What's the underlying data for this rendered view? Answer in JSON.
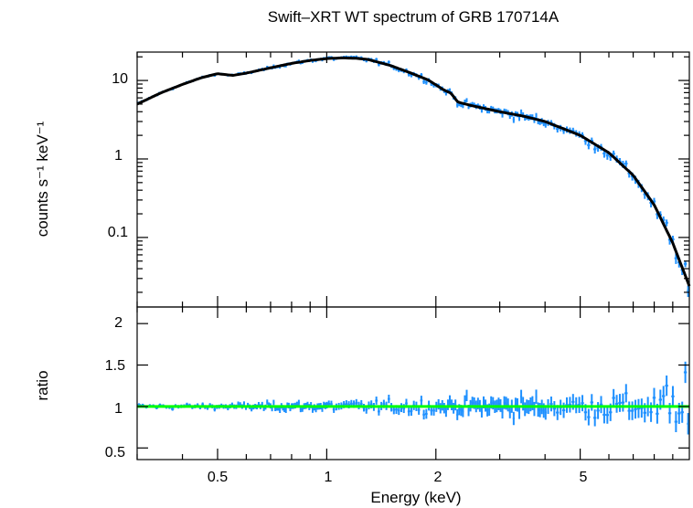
{
  "chart_data": {
    "type": "line",
    "title": "Swift–XRT WT spectrum of GRB 170714A",
    "xlabel": "Energy (keV)",
    "xscale": "log",
    "xlim": [
      0.3,
      10
    ],
    "x_ticks": [
      0.5,
      1,
      2,
      5
    ],
    "x_tick_labels": [
      "0.5",
      "1",
      "2",
      "5"
    ],
    "colors": {
      "data": "#1e90ff",
      "model": "#000000",
      "ratio_ref": "#00ff00"
    },
    "panels": [
      {
        "name": "spectrum",
        "ylabel": "counts s⁻¹ keV⁻¹",
        "yscale": "log",
        "ylim": [
          0.013,
          23
        ],
        "y_ticks": [
          0.1,
          1,
          10
        ],
        "y_tick_labels": [
          "0.1",
          "1",
          "10"
        ],
        "series": [
          {
            "role": "model",
            "x": [
              0.3,
              0.35,
              0.4,
              0.45,
              0.5,
              0.55,
              0.6,
              0.7,
              0.8,
              0.9,
              1.0,
              1.1,
              1.2,
              1.3,
              1.5,
              1.7,
              1.9,
              2.0,
              2.1,
              2.2,
              2.3,
              2.5,
              3.0,
              3.5,
              4.0,
              5.0,
              6.0,
              7.0,
              8.0,
              9.0,
              10.0
            ],
            "y": [
              5.0,
              7.0,
              8.9,
              10.8,
              12.2,
              11.6,
              12.4,
              14.5,
              16.5,
              18.0,
              19.0,
              19.4,
              19.2,
              18.5,
              15.5,
              12.5,
              10.2,
              8.8,
              7.6,
              6.9,
              5.3,
              4.8,
              4.0,
              3.5,
              3.0,
              2.0,
              1.2,
              0.62,
              0.26,
              0.085,
              0.024
            ]
          }
        ]
      },
      {
        "name": "ratio",
        "ylabel": "ratio",
        "yscale": "linear",
        "ylim": [
          0.36,
          2.2
        ],
        "y_ticks": [
          0.5,
          1,
          1.5,
          2
        ],
        "y_tick_labels": [
          "0.5",
          "1",
          "1.5",
          "2"
        ],
        "reference_line": 1
      }
    ]
  }
}
